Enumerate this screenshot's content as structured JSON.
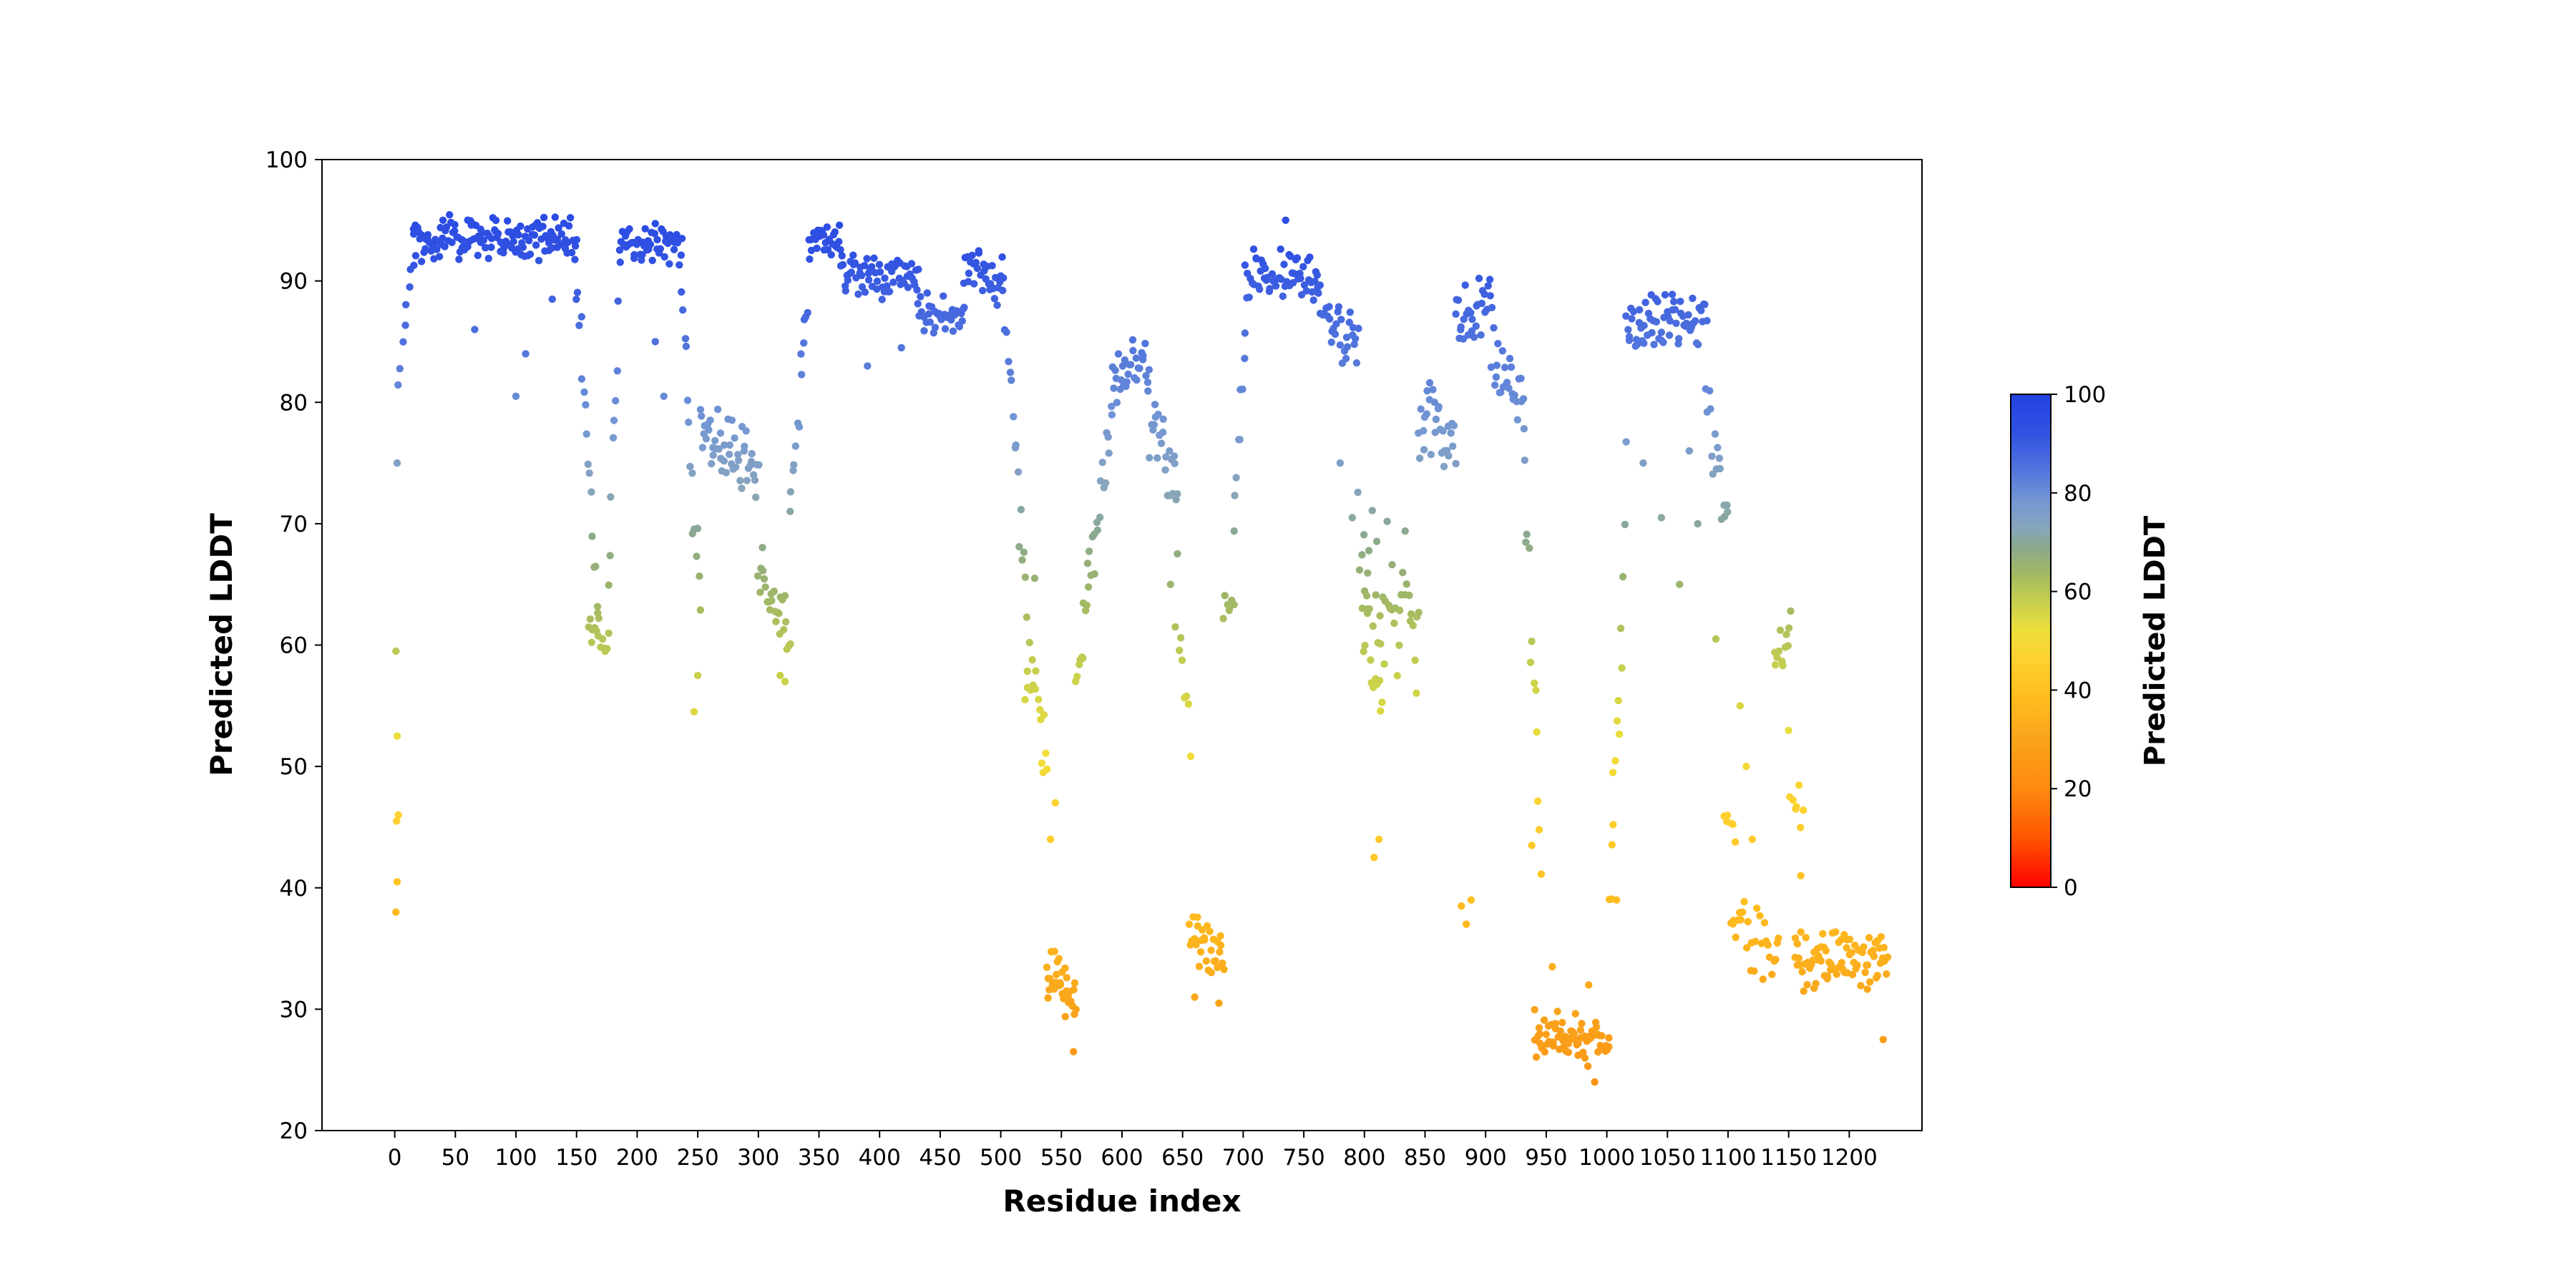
{
  "figure": {
    "background": "#ffffff"
  },
  "chart_data": {
    "type": "scatter",
    "title": "",
    "xlabel": "Residue index",
    "ylabel": "Predicted LDDT",
    "xlim": [
      -60,
      1260
    ],
    "ylim": [
      20,
      100
    ],
    "xticks": [
      0,
      50,
      100,
      150,
      200,
      250,
      300,
      350,
      400,
      450,
      500,
      550,
      600,
      650,
      700,
      750,
      800,
      850,
      900,
      950,
      1000,
      1050,
      1100,
      1150,
      1200
    ],
    "yticks": [
      20,
      30,
      40,
      50,
      60,
      70,
      80,
      90,
      100
    ],
    "grid": false,
    "marker_radius_px": 5.2,
    "colormap_stops": [
      [
        0.0,
        "#fe0000"
      ],
      [
        0.1,
        "#ff5500"
      ],
      [
        0.2,
        "#fe8a10"
      ],
      [
        0.3,
        "#f9a41b"
      ],
      [
        0.38,
        "#ffbb1e"
      ],
      [
        0.46,
        "#ffd02e"
      ],
      [
        0.52,
        "#ecdf3a"
      ],
      [
        0.58,
        "#c6cf4e"
      ],
      [
        0.64,
        "#9fb766"
      ],
      [
        0.69,
        "#8ba98f"
      ],
      [
        0.73,
        "#87a5bd"
      ],
      [
        0.78,
        "#7598d2"
      ],
      [
        0.84,
        "#5578dc"
      ],
      [
        0.92,
        "#3152e2"
      ],
      [
        1.0,
        "#2342e4"
      ]
    ],
    "colorbar": {
      "label": "Predicted LDDT",
      "ticks": [
        0,
        20,
        40,
        60,
        80,
        100
      ],
      "vmin": 0,
      "vmax": 100
    },
    "segments_format": "[x_start, x_end, y_start, y_end, y_spread, n_points] — per-residue pLDDT band, linearly interpolated with noise",
    "segments": [
      [
        3,
        15,
        82,
        92,
        2,
        8
      ],
      [
        15,
        150,
        93.5,
        93.5,
        2.2,
        140
      ],
      [
        150,
        168,
        90,
        63,
        3,
        16
      ],
      [
        160,
        176,
        62,
        60,
        2.5,
        14
      ],
      [
        176,
        186,
        65,
        91,
        3,
        9
      ],
      [
        186,
        237,
        93,
        93,
        2.2,
        52
      ],
      [
        237,
        252,
        88,
        63,
        4,
        14
      ],
      [
        252,
        300,
        78,
        74,
        3.5,
        48
      ],
      [
        300,
        326,
        66,
        61,
        3,
        26
      ],
      [
        326,
        342,
        70,
        91,
        3,
        14
      ],
      [
        342,
        368,
        93.5,
        93.5,
        1.8,
        26
      ],
      [
        368,
        432,
        91,
        90,
        2.5,
        64
      ],
      [
        432,
        470,
        87.5,
        87,
        2,
        38
      ],
      [
        470,
        502,
        91,
        90,
        2.5,
        32
      ],
      [
        502,
        522,
        88,
        62,
        4,
        16
      ],
      [
        522,
        538,
        60,
        50,
        4,
        14
      ],
      [
        538,
        562,
        33,
        31,
        3,
        34
      ],
      [
        562,
        572,
        57,
        63,
        3,
        10
      ],
      [
        572,
        592,
        65,
        79,
        3.5,
        18
      ],
      [
        592,
        622,
        82,
        83,
        3,
        30
      ],
      [
        622,
        646,
        80,
        72,
        4.5,
        24
      ],
      [
        646,
        656,
        65,
        50,
        4,
        8
      ],
      [
        656,
        684,
        36,
        34,
        2.8,
        30
      ],
      [
        684,
        692,
        63,
        64,
        2,
        7
      ],
      [
        692,
        702,
        70,
        86,
        3,
        9
      ],
      [
        702,
        762,
        90.5,
        90.5,
        2.5,
        60
      ],
      [
        762,
        795,
        88,
        84,
        3,
        32
      ],
      [
        795,
        815,
        70,
        52,
        5,
        16
      ],
      [
        798,
        845,
        64,
        62,
        9,
        40
      ],
      [
        845,
        875,
        79,
        76,
        4,
        30
      ],
      [
        875,
        905,
        87,
        88,
        3,
        30
      ],
      [
        905,
        932,
        84,
        80,
        3.5,
        26
      ],
      [
        932,
        946,
        74,
        45,
        6,
        12
      ],
      [
        940,
        1002,
        28,
        27,
        2.5,
        70
      ],
      [
        1002,
        1012,
        40,
        58,
        5,
        9
      ],
      [
        1012,
        1016,
        60,
        75,
        3,
        4
      ],
      [
        1016,
        1082,
        86.5,
        86.5,
        2.8,
        66
      ],
      [
        1082,
        1100,
        80,
        70,
        4,
        16
      ],
      [
        1096,
        1106,
        46,
        45,
        1.5,
        6
      ],
      [
        1102,
        1142,
        38,
        34,
        4,
        28
      ],
      [
        1138,
        1152,
        58,
        62,
        3,
        12
      ],
      [
        1150,
        1162,
        52,
        45,
        4,
        8
      ],
      [
        1155,
        1232,
        34,
        34,
        3,
        85
      ]
    ],
    "outlier_points": [
      [
        1,
        38
      ],
      [
        2,
        40.5
      ],
      [
        1.5,
        45.5
      ],
      [
        3,
        46
      ],
      [
        2,
        52.5
      ],
      [
        1,
        59.5
      ],
      [
        2,
        75
      ],
      [
        66,
        86
      ],
      [
        100,
        80.5
      ],
      [
        108,
        84
      ],
      [
        130,
        88.5
      ],
      [
        215,
        85
      ],
      [
        222,
        80.5
      ],
      [
        247,
        54.5
      ],
      [
        250,
        57.5
      ],
      [
        318,
        57.5
      ],
      [
        322,
        57
      ],
      [
        390,
        83
      ],
      [
        418,
        84.5
      ],
      [
        520,
        55.5
      ],
      [
        522,
        56.5
      ],
      [
        528,
        65.5
      ],
      [
        535,
        49.5
      ],
      [
        541,
        44
      ],
      [
        545,
        47
      ],
      [
        560,
        26.5
      ],
      [
        640,
        65
      ],
      [
        644,
        61.5
      ],
      [
        660,
        31
      ],
      [
        680,
        30.5
      ],
      [
        735,
        95
      ],
      [
        780,
        75
      ],
      [
        790,
        70.5
      ],
      [
        808,
        42.5
      ],
      [
        812,
        44
      ],
      [
        880,
        38.5
      ],
      [
        884,
        37
      ],
      [
        888,
        39
      ],
      [
        938,
        43.5
      ],
      [
        955,
        33.5
      ],
      [
        985,
        32
      ],
      [
        990,
        24
      ],
      [
        1005,
        49.5
      ],
      [
        1008,
        39
      ],
      [
        1030,
        75
      ],
      [
        1045,
        70.5
      ],
      [
        1060,
        65
      ],
      [
        1068,
        76
      ],
      [
        1075,
        70
      ],
      [
        1090,
        60.5
      ],
      [
        1110,
        55
      ],
      [
        1115,
        50
      ],
      [
        1120,
        44
      ],
      [
        1160,
        41
      ],
      [
        1228,
        27.5
      ]
    ]
  }
}
